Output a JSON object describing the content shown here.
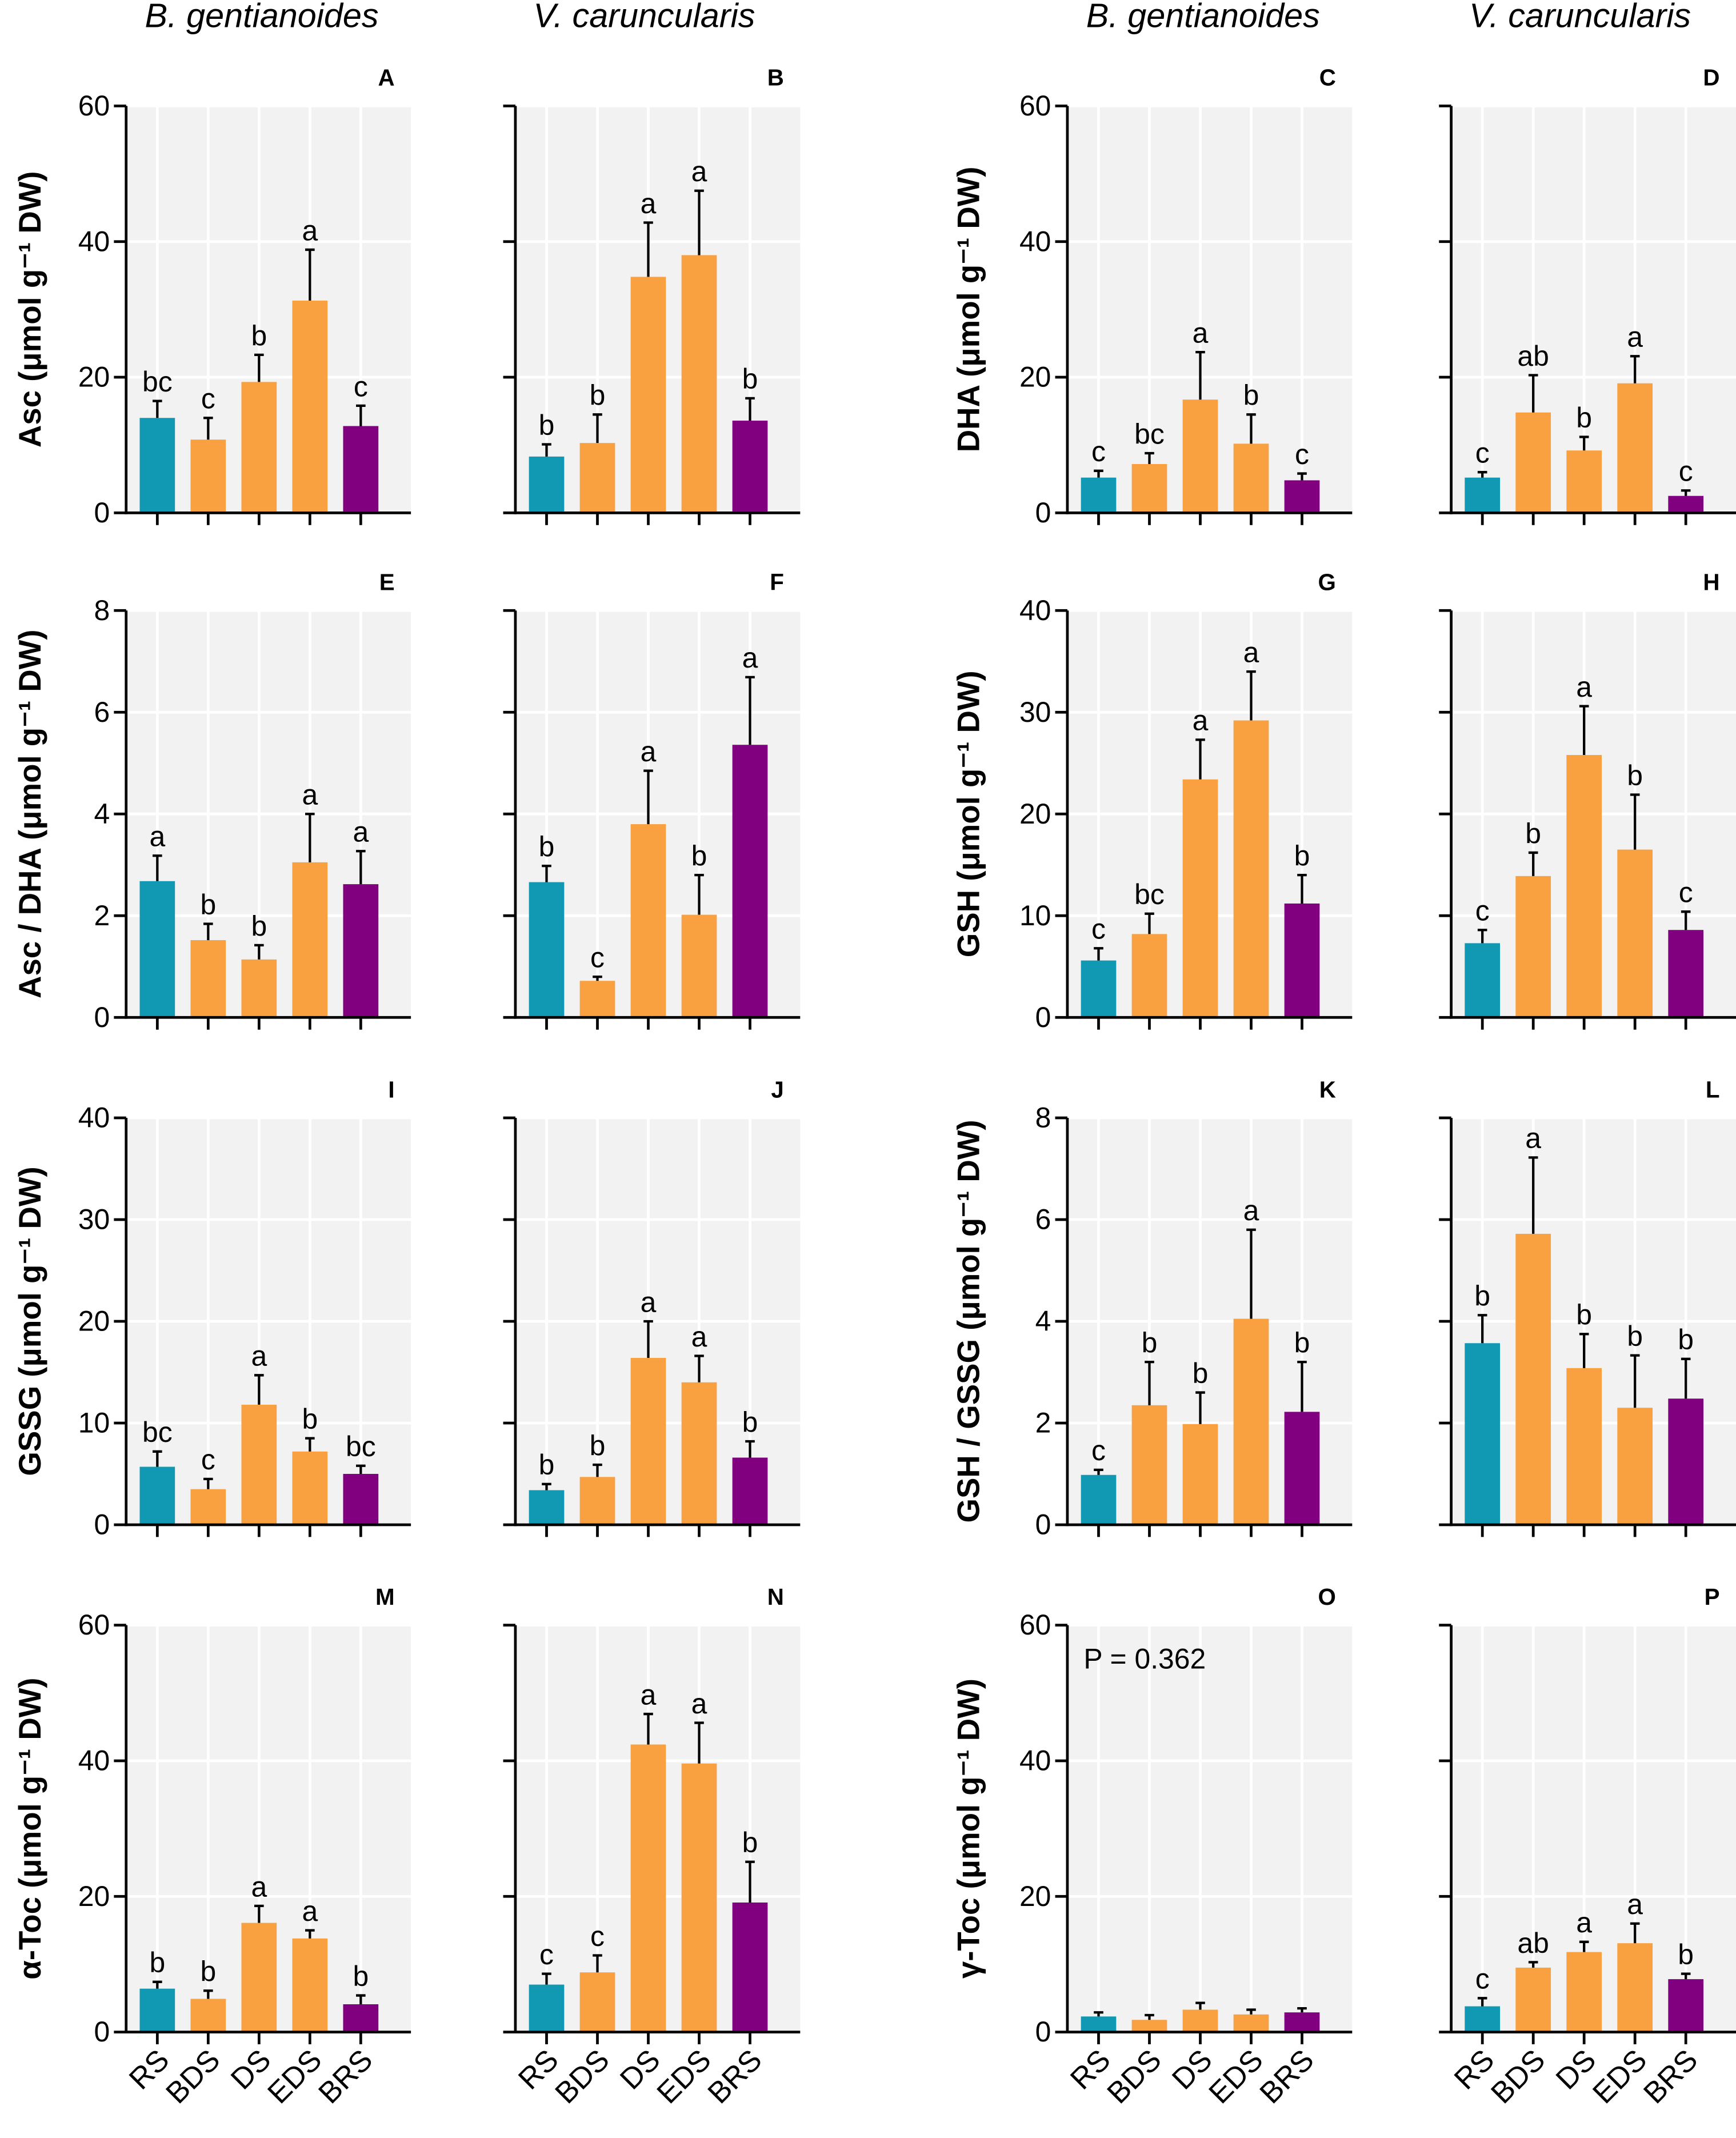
{
  "colors": {
    "RS": "#1199b4",
    "BDS": "#f9a040",
    "DS": "#f9a040",
    "EDS": "#f9a040",
    "BRS": "#800080",
    "grid_bg": "#f2f2f2"
  },
  "column_titles": [
    "B. gentianoides",
    "V. caruncularis",
    "B. gentianoides",
    "V. caruncularis"
  ],
  "chart_data": {
    "type": "bar",
    "categories": [
      "RS",
      "BDS",
      "DS",
      "EDS",
      "BRS"
    ],
    "panels": [
      {
        "letter": "A",
        "ylabel": "Asc (μmol g⁻¹ DW)",
        "ylim": [
          0,
          60
        ],
        "ticks": [
          0,
          20,
          40,
          60
        ],
        "values": [
          14,
          10.8,
          19.3,
          31.3,
          12.8
        ],
        "errors": [
          2.5,
          3.2,
          4,
          7.5,
          3
        ],
        "letters": [
          "bc",
          "c",
          "b",
          "a",
          "c"
        ]
      },
      {
        "letter": "B",
        "ylabel": "",
        "ylim": [
          0,
          60
        ],
        "ticks": [
          0,
          20,
          40,
          60
        ],
        "values": [
          8.3,
          10.3,
          34.8,
          38,
          13.6
        ],
        "errors": [
          1.8,
          4.2,
          8,
          9.5,
          3.3
        ],
        "letters": [
          "b",
          "b",
          "a",
          "a",
          "b"
        ]
      },
      {
        "letter": "C",
        "ylabel": "DHA (μmol g⁻¹ DW)",
        "ylim": [
          0,
          60
        ],
        "ticks": [
          0,
          20,
          40,
          60
        ],
        "values": [
          5.2,
          7.2,
          16.7,
          10.2,
          4.8
        ],
        "errors": [
          1,
          1.6,
          7,
          4.3,
          1
        ],
        "letters": [
          "c",
          "bc",
          "a",
          "b",
          "c"
        ]
      },
      {
        "letter": "D",
        "ylabel": "",
        "ylim": [
          0,
          60
        ],
        "ticks": [
          0,
          20,
          40,
          60
        ],
        "values": [
          5.2,
          14.8,
          9.2,
          19.1,
          2.5
        ],
        "errors": [
          0.8,
          5.5,
          2,
          4,
          0.8
        ],
        "letters": [
          "c",
          "ab",
          "b",
          "a",
          "c"
        ]
      },
      {
        "letter": "E",
        "ylabel": "Asc / DHA (μmol g⁻¹ DW)",
        "ylim": [
          0,
          8
        ],
        "ticks": [
          0,
          2,
          4,
          6,
          8
        ],
        "values": [
          2.68,
          1.52,
          1.14,
          3.05,
          2.62
        ],
        "errors": [
          0.5,
          0.32,
          0.28,
          0.95,
          0.65
        ],
        "letters": [
          "a",
          "b",
          "b",
          "a",
          "a"
        ]
      },
      {
        "letter": "F",
        "ylabel": "",
        "ylim": [
          0,
          8
        ],
        "ticks": [
          0,
          2,
          4,
          6,
          8
        ],
        "values": [
          2.66,
          0.72,
          3.8,
          2.02,
          5.36
        ],
        "errors": [
          0.32,
          0.08,
          1.05,
          0.78,
          1.33
        ],
        "letters": [
          "b",
          "c",
          "a",
          "b",
          "a"
        ]
      },
      {
        "letter": "G",
        "ylabel": "GSH (μmol g⁻¹ DW)",
        "ylim": [
          0,
          40
        ],
        "ticks": [
          0,
          10,
          20,
          30,
          40
        ],
        "values": [
          5.6,
          8.2,
          23.4,
          29.2,
          11.2
        ],
        "errors": [
          1.2,
          2,
          3.9,
          4.8,
          2.8
        ],
        "letters": [
          "c",
          "bc",
          "a",
          "a",
          "b"
        ]
      },
      {
        "letter": "H",
        "ylabel": "",
        "ylim": [
          0,
          40
        ],
        "ticks": [
          0,
          10,
          20,
          30,
          40
        ],
        "values": [
          7.3,
          13.9,
          25.8,
          16.5,
          8.6
        ],
        "errors": [
          1.3,
          2.3,
          4.8,
          5.4,
          1.8
        ],
        "letters": [
          "c",
          "b",
          "a",
          "b",
          "c"
        ]
      },
      {
        "letter": "I",
        "ylabel": "GSSG (μmol g⁻¹ DW)",
        "ylim": [
          0,
          40
        ],
        "ticks": [
          0,
          10,
          20,
          30,
          40
        ],
        "values": [
          5.7,
          3.5,
          11.8,
          7.2,
          5
        ],
        "errors": [
          1.5,
          1,
          2.9,
          1.3,
          0.8
        ],
        "letters": [
          "bc",
          "c",
          "a",
          "b",
          "bc"
        ]
      },
      {
        "letter": "J",
        "ylabel": "",
        "ylim": [
          0,
          40
        ],
        "ticks": [
          0,
          10,
          20,
          30,
          40
        ],
        "values": [
          3.4,
          4.7,
          16.4,
          14,
          6.6
        ],
        "errors": [
          0.6,
          1.2,
          3.6,
          2.6,
          1.6
        ],
        "letters": [
          "b",
          "b",
          "a",
          "a",
          "b"
        ]
      },
      {
        "letter": "K",
        "ylabel": "GSH / GSSG (μmol g⁻¹ DW)",
        "ylim": [
          0,
          8
        ],
        "ticks": [
          0,
          2,
          4,
          6,
          8
        ],
        "values": [
          0.98,
          2.35,
          1.98,
          4.05,
          2.22
        ],
        "errors": [
          0.1,
          0.85,
          0.62,
          1.75,
          0.98
        ],
        "letters": [
          "c",
          "b",
          "b",
          "a",
          "b"
        ]
      },
      {
        "letter": "L",
        "ylabel": "",
        "ylim": [
          0,
          8
        ],
        "ticks": [
          0,
          2,
          4,
          6,
          8
        ],
        "values": [
          3.57,
          5.72,
          3.08,
          2.3,
          2.48
        ],
        "errors": [
          0.55,
          1.5,
          0.67,
          1.03,
          0.78
        ],
        "letters": [
          "b",
          "a",
          "b",
          "b",
          "b"
        ]
      },
      {
        "letter": "M",
        "ylabel": "α-Toc (μmol g⁻¹ DW)",
        "ylim": [
          0,
          60
        ],
        "ticks": [
          0,
          20,
          40,
          60
        ],
        "values": [
          6.4,
          4.9,
          16.1,
          13.8,
          4.1
        ],
        "errors": [
          1,
          1.2,
          2.5,
          1.2,
          1.3
        ],
        "letters": [
          "b",
          "b",
          "a",
          "a",
          "b"
        ]
      },
      {
        "letter": "N",
        "ylabel": "",
        "ylim": [
          0,
          60
        ],
        "ticks": [
          0,
          20,
          40,
          60
        ],
        "values": [
          7,
          8.8,
          42.4,
          39.6,
          19.1
        ],
        "errors": [
          1.6,
          2.5,
          4.5,
          6,
          6
        ],
        "letters": [
          "c",
          "c",
          "a",
          "a",
          "b"
        ]
      },
      {
        "letter": "O",
        "ylabel": "γ-Toc (μmol g⁻¹ DW)",
        "ylim": [
          0,
          60
        ],
        "ticks": [
          0,
          20,
          40,
          60
        ],
        "values": [
          2.3,
          1.8,
          3.3,
          2.6,
          2.9
        ],
        "errors": [
          0.6,
          0.7,
          1,
          0.7,
          0.6
        ],
        "letters": [
          "",
          "",
          "",
          "",
          ""
        ],
        "annotation": "P = 0.362"
      },
      {
        "letter": "P",
        "ylabel": "",
        "ylim": [
          0,
          60
        ],
        "ticks": [
          0,
          20,
          40,
          60
        ],
        "values": [
          3.8,
          9.5,
          11.8,
          13.1,
          7.8
        ],
        "errors": [
          1.2,
          0.8,
          1.5,
          2.9,
          0.8
        ],
        "letters": [
          "c",
          "ab",
          "a",
          "a",
          "b"
        ]
      }
    ]
  }
}
